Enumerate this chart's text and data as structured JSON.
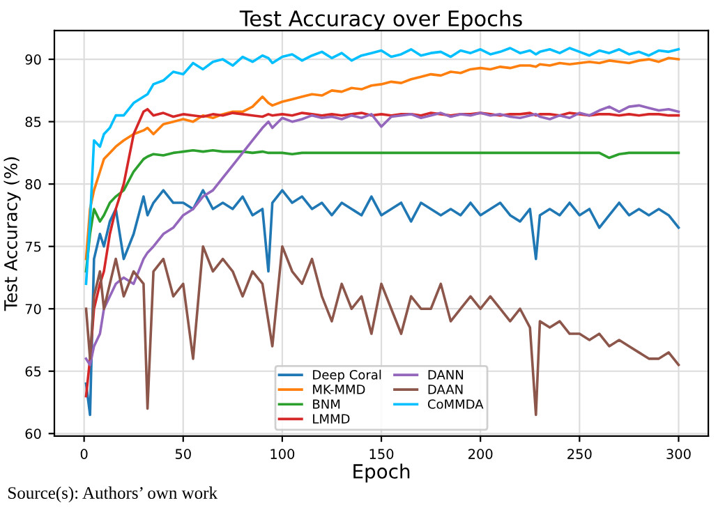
{
  "chart_data": {
    "type": "line",
    "title": "Test Accuracy over Epochs",
    "xlabel": "Epoch",
    "ylabel": "Test Accuracy (%)",
    "x": [
      1,
      3,
      5,
      8,
      10,
      13,
      16,
      20,
      25,
      30,
      32,
      35,
      40,
      45,
      50,
      55,
      60,
      65,
      70,
      75,
      80,
      85,
      90,
      93,
      95,
      100,
      105,
      110,
      115,
      120,
      125,
      130,
      135,
      140,
      145,
      150,
      155,
      160,
      165,
      170,
      175,
      180,
      185,
      190,
      195,
      200,
      205,
      210,
      215,
      220,
      225,
      228,
      230,
      235,
      240,
      245,
      250,
      255,
      260,
      265,
      270,
      275,
      280,
      285,
      290,
      295,
      300
    ],
    "series": [
      {
        "name": "Deep Coral",
        "color": "#1f77b4",
        "values": [
          64,
          61.5,
          74,
          76,
          75,
          77,
          78,
          74,
          76,
          79,
          77.5,
          78.5,
          79.5,
          78.5,
          78.5,
          78,
          79.5,
          78,
          78.5,
          78,
          79,
          77.5,
          78,
          73,
          78.5,
          79.5,
          78.5,
          79,
          78,
          78.5,
          77.5,
          78.5,
          78,
          77.5,
          79,
          77.5,
          78,
          78.5,
          77,
          78.5,
          78,
          77.5,
          78,
          77.5,
          78.5,
          77.5,
          78,
          78.5,
          77.5,
          77,
          78,
          74,
          77.5,
          78,
          77.5,
          78.5,
          77.5,
          78,
          76.5,
          77.5,
          78.5,
          77.5,
          78,
          77.5,
          78,
          77.5,
          76.5
        ]
      },
      {
        "name": "MK-MMD",
        "color": "#ff7f0e",
        "values": [
          74,
          78,
          79.5,
          81,
          82,
          82.5,
          83,
          83.5,
          84,
          84.3,
          84.5,
          84,
          84.8,
          85,
          85.2,
          85,
          85.5,
          85.3,
          85.6,
          85.8,
          85.8,
          86.2,
          87,
          86.5,
          86.3,
          86.6,
          86.8,
          87,
          87.2,
          87.1,
          87.5,
          87.4,
          87.7,
          87.6,
          87.9,
          88,
          88.2,
          88.1,
          88.4,
          88.6,
          88.8,
          88.7,
          89,
          88.9,
          89.2,
          89.3,
          89.2,
          89.4,
          89.3,
          89.5,
          89.5,
          89.4,
          89.6,
          89.5,
          89.7,
          89.6,
          89.7,
          89.8,
          89.7,
          89.9,
          89.8,
          89.7,
          89.9,
          90,
          89.8,
          90.1,
          90
        ]
      },
      {
        "name": "BNM",
        "color": "#2ca02c",
        "values": [
          73,
          76,
          78,
          77,
          77.5,
          78.5,
          79,
          79.5,
          81,
          82,
          82.2,
          82.4,
          82.3,
          82.5,
          82.6,
          82.7,
          82.6,
          82.7,
          82.6,
          82.6,
          82.6,
          82.5,
          82.6,
          82.5,
          82.5,
          82.5,
          82.4,
          82.5,
          82.5,
          82.5,
          82.5,
          82.5,
          82.5,
          82.5,
          82.5,
          82.5,
          82.5,
          82.5,
          82.5,
          82.5,
          82.5,
          82.5,
          82.5,
          82.5,
          82.5,
          82.5,
          82.5,
          82.5,
          82.5,
          82.5,
          82.5,
          82.5,
          82.5,
          82.5,
          82.5,
          82.5,
          82.5,
          82.5,
          82.5,
          82.1,
          82.4,
          82.5,
          82.5,
          82.5,
          82.5,
          82.5,
          82.5
        ]
      },
      {
        "name": "LMMD",
        "color": "#d62728",
        "values": [
          63,
          66,
          70,
          72,
          73,
          76,
          78,
          80,
          84,
          85.8,
          86,
          85.5,
          85.7,
          85.4,
          85.6,
          85.5,
          85.4,
          85.6,
          85.5,
          85.7,
          85.6,
          85.5,
          85.4,
          85.6,
          85.5,
          85.6,
          85.5,
          85.7,
          85.6,
          85.5,
          85.6,
          85.5,
          85.6,
          85.7,
          85.5,
          85.6,
          85.5,
          85.6,
          85.6,
          85.5,
          85.7,
          85.6,
          85.5,
          85.6,
          85.6,
          85.7,
          85.6,
          85.5,
          85.6,
          85.6,
          85.7,
          85.5,
          85.6,
          85.6,
          85.5,
          85.7,
          85.6,
          85.5,
          85.6,
          85.6,
          85.5,
          85.6,
          85.5,
          85.6,
          85.6,
          85.5,
          85.5
        ]
      },
      {
        "name": "DANN",
        "color": "#9467bd",
        "values": [
          66,
          65.5,
          67,
          68,
          70,
          71,
          72,
          72.5,
          72,
          74,
          74.5,
          75,
          76,
          76.5,
          77.5,
          78,
          79,
          79.5,
          80.5,
          81.5,
          82.5,
          83.5,
          84.5,
          85,
          84.5,
          85.3,
          85,
          85.2,
          85.5,
          85.3,
          85.4,
          85.2,
          85.5,
          85.3,
          85.6,
          84.6,
          85.4,
          85.5,
          85.6,
          85.3,
          85.5,
          85.7,
          85.4,
          85.6,
          85.5,
          85.7,
          85.5,
          85.6,
          85.4,
          85.3,
          85.5,
          85.6,
          85.4,
          85.2,
          85.5,
          85.3,
          85.7,
          85.5,
          85.9,
          86.2,
          85.8,
          86.2,
          86.3,
          86.1,
          85.9,
          86,
          85.8
        ]
      },
      {
        "name": "DAAN",
        "color": "#8c564b",
        "values": [
          70,
          66,
          71,
          73,
          70,
          72,
          74,
          71,
          73,
          72,
          62,
          73,
          74,
          71,
          72,
          66,
          75,
          73,
          74,
          73,
          71,
          73,
          72,
          69,
          67,
          75,
          73,
          72,
          74,
          71,
          69,
          72,
          70,
          71,
          68,
          72,
          70,
          68,
          71,
          70,
          70,
          72,
          69,
          70,
          71,
          70,
          71,
          70,
          69,
          70,
          68.5,
          61.5,
          69,
          68.5,
          69,
          68,
          68,
          67.5,
          68,
          67,
          67.5,
          67,
          66.5,
          66,
          66,
          66.5,
          65.5
        ]
      },
      {
        "name": "CoMMDA",
        "color": "#00bfff",
        "values": [
          72,
          77,
          83.5,
          83,
          84,
          84.5,
          85.5,
          85.5,
          86.5,
          87,
          87.2,
          88,
          88.3,
          89,
          88.8,
          89.7,
          89.2,
          89.8,
          90,
          89.5,
          90.2,
          89.8,
          90.3,
          90.1,
          89.7,
          90.2,
          90.4,
          89.9,
          90.3,
          90.6,
          90.1,
          90.5,
          89.9,
          90.3,
          90.5,
          90.7,
          90.2,
          90.4,
          90.8,
          90.3,
          90.5,
          90.6,
          90.2,
          90.7,
          90.5,
          90.8,
          90.4,
          90.6,
          90.9,
          90.5,
          90.7,
          90.4,
          90.6,
          90.8,
          90.5,
          90.9,
          90.6,
          90.3,
          90.7,
          90.5,
          90.8,
          90.4,
          90.6,
          90.3,
          90.7,
          90.6,
          90.8
        ]
      }
    ],
    "xlim": [
      -15,
      315
    ],
    "ylim": [
      59.8,
      92.3
    ],
    "xticks": [
      0,
      50,
      100,
      150,
      200,
      250,
      300
    ],
    "yticks": [
      60,
      65,
      70,
      75,
      80,
      85,
      90
    ],
    "grid": true,
    "legend": "bottom",
    "annotations": [
      "Source(s): Authors’ own work"
    ]
  }
}
